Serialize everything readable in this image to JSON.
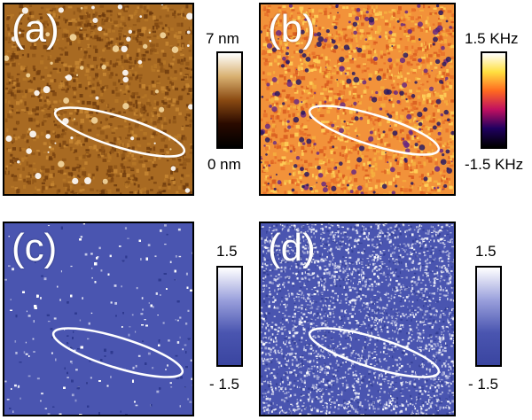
{
  "panels": [
    {
      "id": "a",
      "label": "(a)",
      "base": "#a86a22",
      "style": "topography"
    },
    {
      "id": "b",
      "label": "(b)",
      "base": "#f2923a",
      "style": "frequency"
    },
    {
      "id": "c",
      "label": "(c)",
      "base": "#4a55b0",
      "style": "dissipation"
    },
    {
      "id": "d",
      "label": "(d)",
      "base": "#4a55b0",
      "style": "dissipation"
    }
  ],
  "colorbars": [
    {
      "id": "a",
      "top": "7 nm",
      "bottom": "0 nm",
      "colors": [
        "#ffffff",
        "#d8b070",
        "#8a4a12",
        "#2a0a00",
        "#000000"
      ]
    },
    {
      "id": "b",
      "top": "1.5 KHz",
      "bottom": "-1.5 KHz",
      "colors": [
        "#ffffff",
        "#ffe040",
        "#ff6a20",
        "#c01060",
        "#200060",
        "#000000"
      ]
    },
    {
      "id": "c",
      "top": "1.5",
      "bottom": "- 1.5",
      "colors": [
        "#ffffff",
        "#9aa0dc",
        "#4a55b0",
        "#3a45a0"
      ]
    },
    {
      "id": "d",
      "top": "1.5",
      "bottom": "- 1.5",
      "colors": [
        "#ffffff",
        "#9aa0dc",
        "#4a55b0",
        "#3a45a0"
      ]
    }
  ],
  "ellipse_color": "#ffffff"
}
